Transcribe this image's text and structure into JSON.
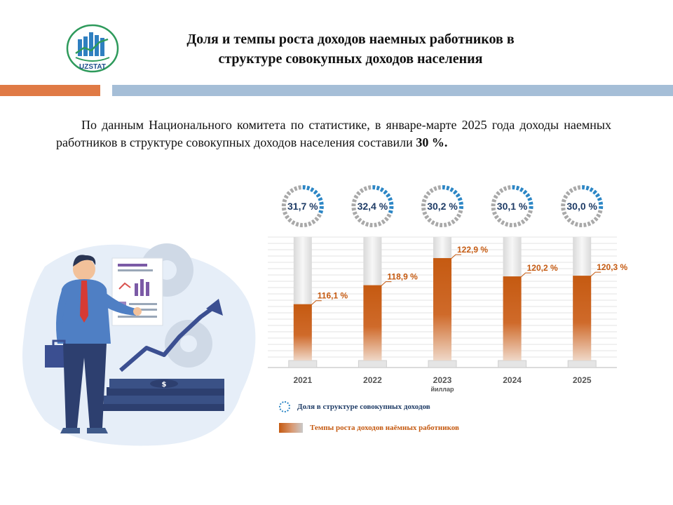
{
  "header": {
    "logo_text": "UZSTAT",
    "title_line1": "Доля и темпы роста доходов наемных работников в",
    "title_line2": "структуре совокупных доходов населения"
  },
  "intro": {
    "text": "По данным Национального комитета по статистике, в январе-марте 2025 года доходы наемных работников в структуре совокупных доходов населения составили",
    "highlight": "30 %."
  },
  "chart_data": {
    "type": "bar",
    "categories": [
      "2021",
      "2022",
      "2023",
      "2024",
      "2025"
    ],
    "series": [
      {
        "name": "Доля в структуре совокупных доходов",
        "values": [
          31.7,
          32.4,
          30.2,
          30.1,
          30.0
        ],
        "labels": [
          "31,7 %",
          "32,4 %",
          "30,2 %",
          "30,1 %",
          "30,0 %"
        ]
      },
      {
        "name": "Темпы роста доходов наёмных работников",
        "values": [
          116.1,
          118.9,
          122.9,
          120.2,
          120.3
        ],
        "labels": [
          "116,1 %",
          "118,9 %",
          "122,9 %",
          "120,2 %",
          "120,3 %"
        ]
      }
    ],
    "xlabel": "йиллар",
    "ylim": [
      108,
      126
    ],
    "grid": true,
    "colors": {
      "bar": "#C55A11",
      "ring_gray": "#a9a9a9",
      "ring_blue": "#2c86c5",
      "label": "#C55A11",
      "ring_text": "#1f3c66"
    }
  },
  "legend": {
    "share_label": "Доля в структуре  совокупных  доходов",
    "growth_label": "Темпы роста  доходов наёмных  работников",
    "share_color": "#1f3c66",
    "growth_color": "#C55A11"
  }
}
